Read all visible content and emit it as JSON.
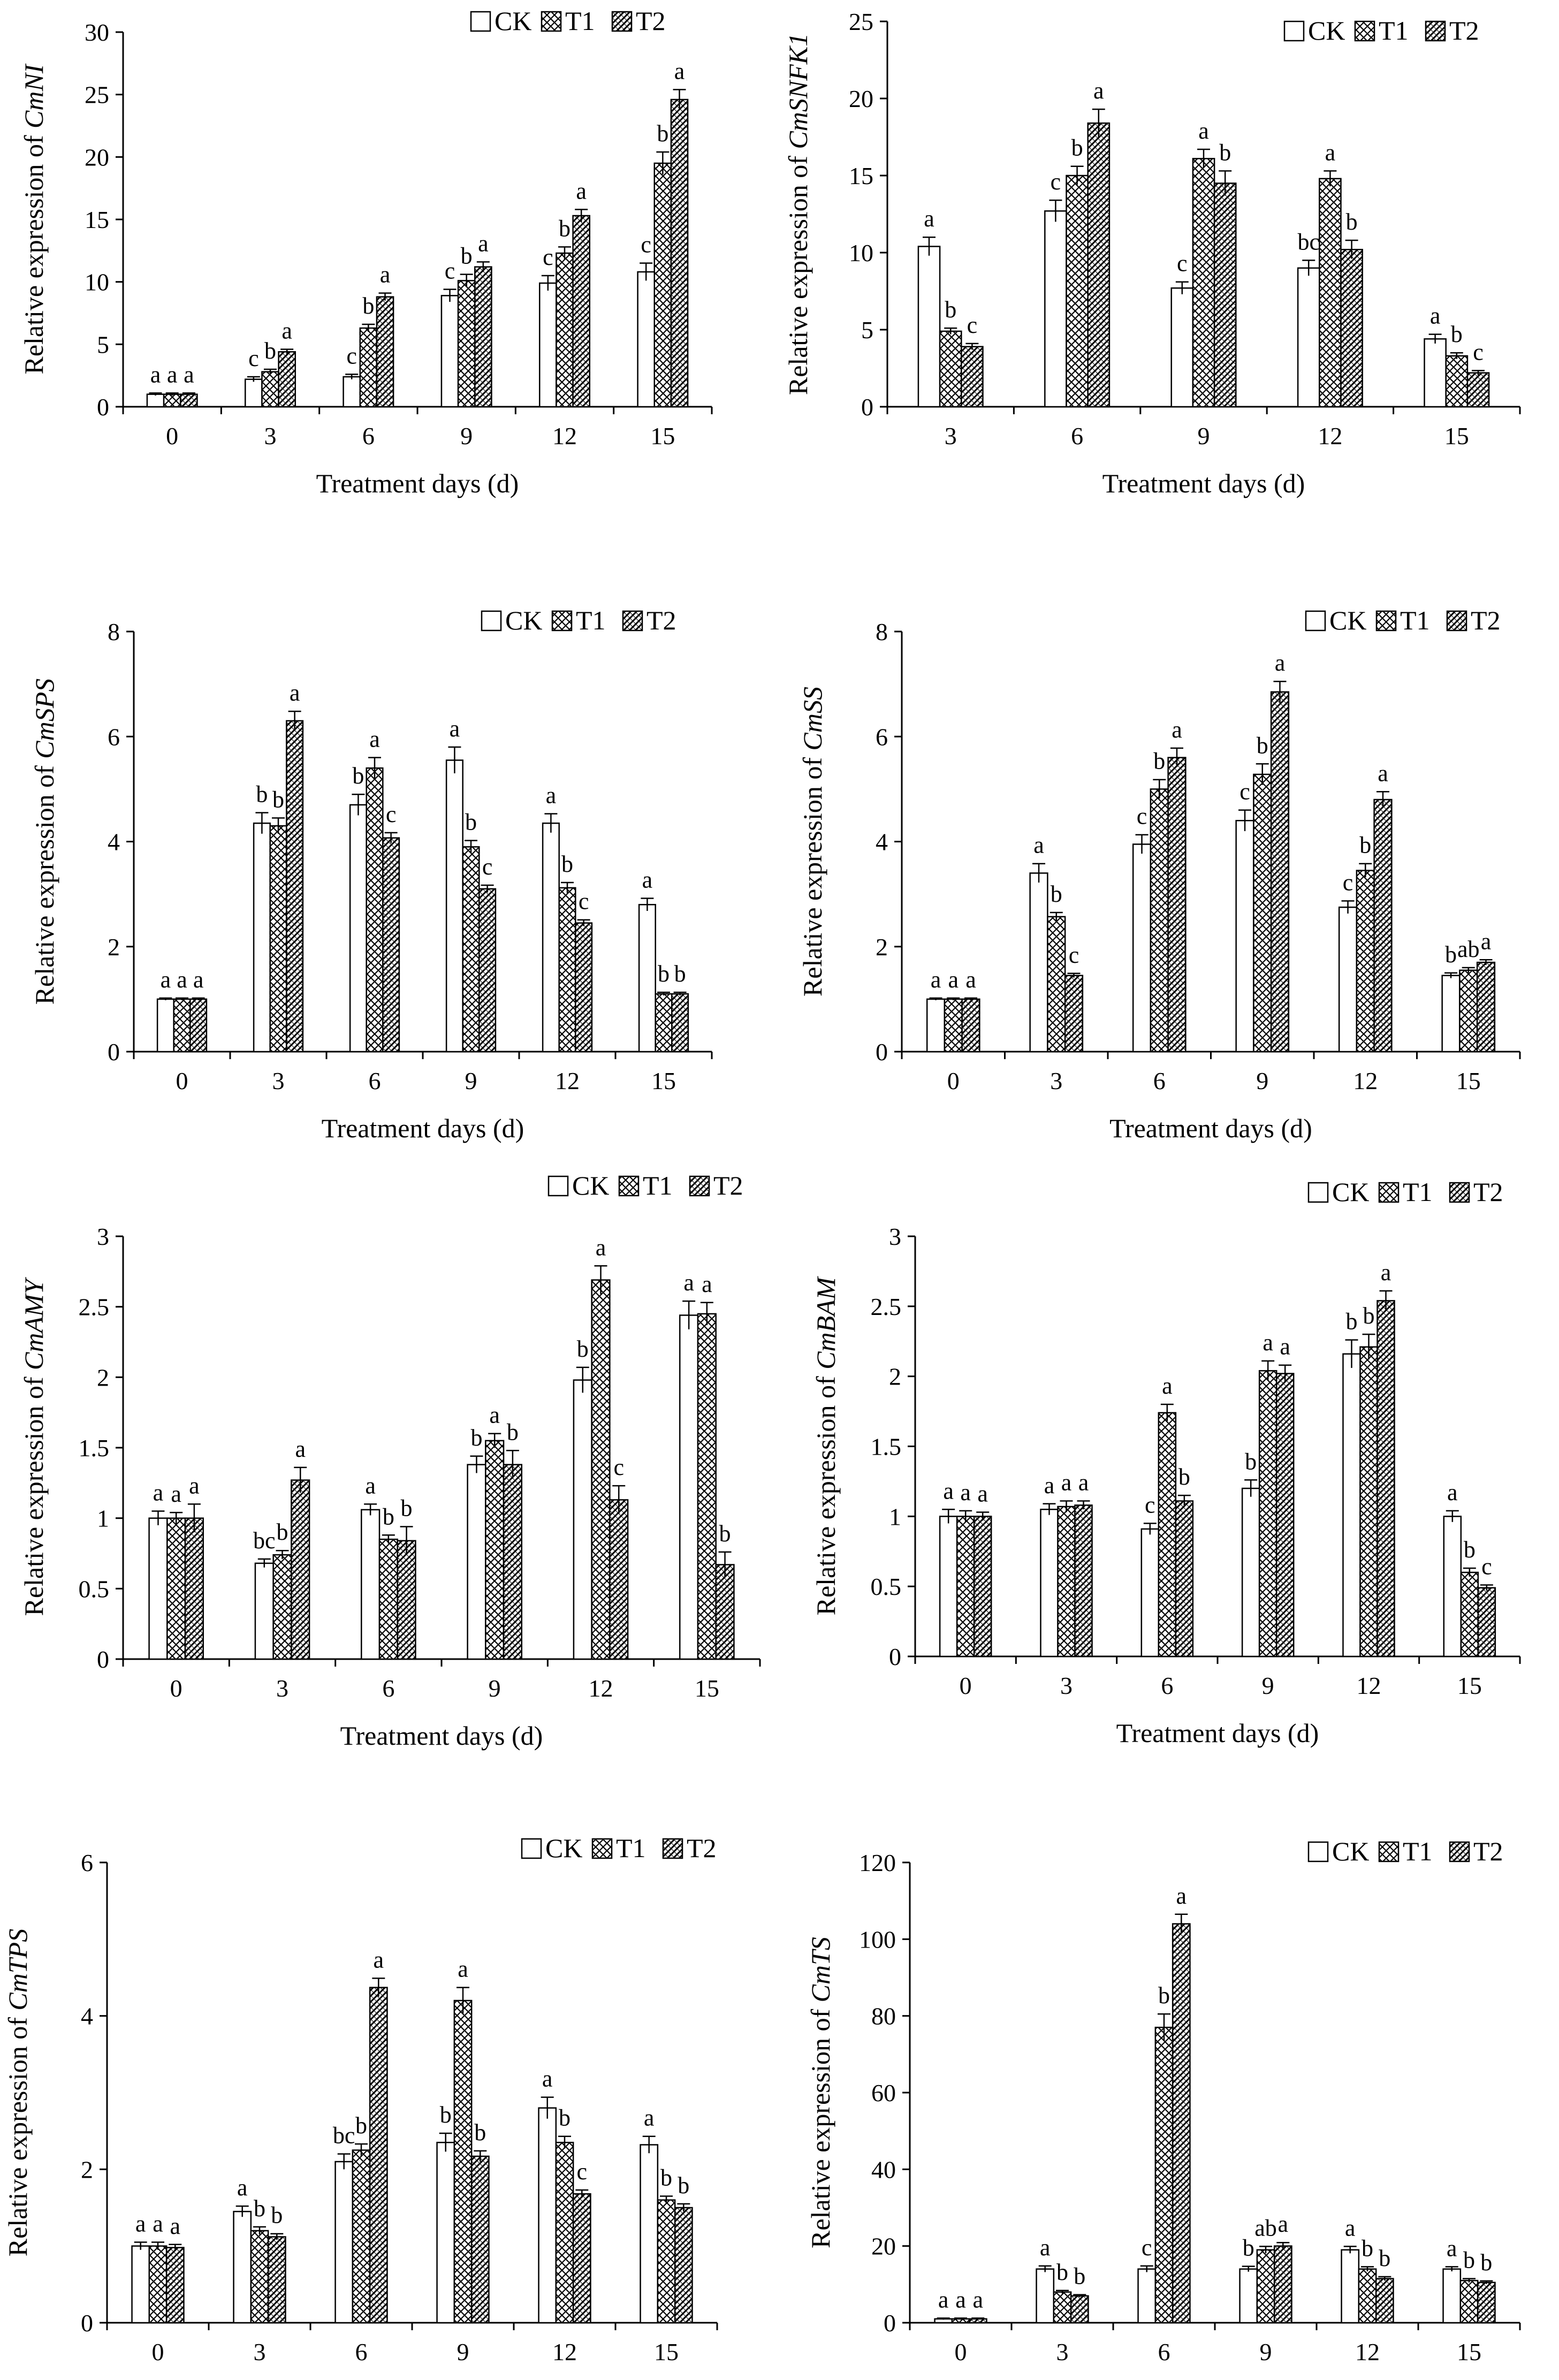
{
  "legend": [
    "CK",
    "T1",
    "T2"
  ],
  "xlabel": "Treatment days (d)",
  "ylabel_prefix": "Relative expression of",
  "chart_data": [
    {
      "type": "bar",
      "gene": "CmNI",
      "ylim": [
        0,
        30
      ],
      "yticks": [
        0,
        5,
        10,
        15,
        20,
        25,
        30
      ],
      "categories": [
        "0",
        "3",
        "6",
        "9",
        "12",
        "15"
      ],
      "series": [
        {
          "name": "CK",
          "values": [
            1,
            2.2,
            2.4,
            8.9,
            9.9,
            10.8
          ],
          "err": [
            0.1,
            0.2,
            0.2,
            0.5,
            0.6,
            0.7
          ]
        },
        {
          "name": "T1",
          "values": [
            1,
            2.8,
            6.3,
            10.1,
            12.3,
            19.5
          ],
          "err": [
            0.1,
            0.2,
            0.3,
            0.5,
            0.5,
            0.9
          ]
        },
        {
          "name": "T2",
          "values": [
            1,
            4.4,
            8.8,
            11.2,
            15.3,
            24.6
          ],
          "err": [
            0.1,
            0.2,
            0.3,
            0.4,
            0.5,
            0.8
          ]
        }
      ],
      "letters": [
        [
          "a",
          "a",
          "a"
        ],
        [
          "c",
          "b",
          "a"
        ],
        [
          "c",
          "b",
          "a"
        ],
        [
          "c",
          "b",
          "a"
        ],
        [
          "c",
          "b",
          "a"
        ],
        [
          "c",
          "b",
          "a"
        ]
      ]
    },
    {
      "type": "bar",
      "gene": "CmSNFK1",
      "ylim": [
        0,
        25
      ],
      "yticks": [
        0,
        5,
        10,
        15,
        20,
        25
      ],
      "categories": [
        "3",
        "6",
        "9",
        "12",
        "15"
      ],
      "series": [
        {
          "name": "CK",
          "values": [
            10.4,
            12.7,
            7.7,
            9.0,
            4.4
          ],
          "err": [
            0.6,
            0.7,
            0.4,
            0.5,
            0.3
          ]
        },
        {
          "name": "T1",
          "values": [
            4.9,
            15.0,
            16.1,
            14.8,
            3.3
          ],
          "err": [
            0.2,
            0.6,
            0.6,
            0.5,
            0.2
          ]
        },
        {
          "name": "T2",
          "values": [
            3.9,
            18.4,
            14.5,
            10.2,
            2.2
          ],
          "err": [
            0.2,
            0.9,
            0.8,
            0.6,
            0.15
          ]
        }
      ],
      "letters": [
        [
          "a",
          "b",
          "c"
        ],
        [
          "c",
          "b",
          "a"
        ],
        [
          "c",
          "a",
          "b"
        ],
        [
          "bc",
          "a",
          "b"
        ],
        [
          "a",
          "b",
          "c"
        ]
      ]
    },
    {
      "type": "bar",
      "gene": "CmSPS",
      "ylim": [
        0,
        8
      ],
      "yticks": [
        0,
        2,
        4,
        6,
        8
      ],
      "categories": [
        "0",
        "3",
        "6",
        "9",
        "12",
        "15"
      ],
      "series": [
        {
          "name": "CK",
          "values": [
            1,
            4.35,
            4.7,
            5.55,
            4.35,
            2.8
          ],
          "err": [
            0.02,
            0.2,
            0.2,
            0.25,
            0.18,
            0.12
          ]
        },
        {
          "name": "T1",
          "values": [
            1,
            4.3,
            5.4,
            3.9,
            3.12,
            1.1
          ],
          "err": [
            0.02,
            0.15,
            0.2,
            0.12,
            0.1,
            0.03
          ]
        },
        {
          "name": "T2",
          "values": [
            1,
            6.3,
            4.07,
            3.1,
            2.45,
            1.1
          ],
          "err": [
            0.02,
            0.18,
            0.1,
            0.07,
            0.06,
            0.03
          ]
        }
      ],
      "letters": [
        [
          "a",
          "a",
          "a"
        ],
        [
          "b",
          "b",
          "a"
        ],
        [
          "b",
          "a",
          "c"
        ],
        [
          "a",
          "b",
          "c"
        ],
        [
          "a",
          "b",
          "c"
        ],
        [
          "a",
          "b",
          "b"
        ]
      ]
    },
    {
      "type": "bar",
      "gene": "CmSS",
      "ylim": [
        0,
        8
      ],
      "yticks": [
        0,
        2,
        4,
        6,
        8
      ],
      "categories": [
        "0",
        "3",
        "6",
        "9",
        "12",
        "15"
      ],
      "series": [
        {
          "name": "CK",
          "values": [
            1,
            3.4,
            3.95,
            4.4,
            2.75,
            1.45
          ],
          "err": [
            0.02,
            0.18,
            0.18,
            0.2,
            0.12,
            0.05
          ]
        },
        {
          "name": "T1",
          "values": [
            1,
            2.57,
            5.0,
            5.28,
            3.45,
            1.55
          ],
          "err": [
            0.02,
            0.08,
            0.18,
            0.2,
            0.13,
            0.05
          ]
        },
        {
          "name": "T2",
          "values": [
            1,
            1.45,
            5.6,
            6.85,
            4.8,
            1.7
          ],
          "err": [
            0.02,
            0.04,
            0.18,
            0.2,
            0.15,
            0.05
          ]
        }
      ],
      "letters": [
        [
          "a",
          "a",
          "a"
        ],
        [
          "a",
          "b",
          "c"
        ],
        [
          "c",
          "b",
          "a"
        ],
        [
          "c",
          "b",
          "a"
        ],
        [
          "c",
          "b",
          "a"
        ],
        [
          "b",
          "ab",
          "a"
        ]
      ]
    },
    {
      "type": "bar",
      "gene": "CmAMY",
      "ylim": [
        0,
        3
      ],
      "yticks": [
        0,
        0.5,
        1,
        1.5,
        2,
        2.5,
        3
      ],
      "categories": [
        "0",
        "3",
        "6",
        "9",
        "12",
        "15"
      ],
      "series": [
        {
          "name": "CK",
          "values": [
            1.0,
            0.68,
            1.06,
            1.38,
            1.98,
            2.44
          ],
          "err": [
            0.05,
            0.03,
            0.04,
            0.06,
            0.09,
            0.1
          ]
        },
        {
          "name": "T1",
          "values": [
            1.0,
            0.74,
            0.85,
            1.55,
            2.69,
            2.45
          ],
          "err": [
            0.04,
            0.03,
            0.03,
            0.05,
            0.1,
            0.08
          ]
        },
        {
          "name": "T2",
          "values": [
            1.0,
            1.27,
            0.84,
            1.38,
            1.13,
            0.67
          ],
          "err": [
            0.1,
            0.09,
            0.1,
            0.1,
            0.1,
            0.09
          ]
        }
      ],
      "letters": [
        [
          "a",
          "a",
          "a"
        ],
        [
          "bc",
          "b",
          "a"
        ],
        [
          "a",
          "b",
          "b"
        ],
        [
          "b",
          "a",
          "b"
        ],
        [
          "b",
          "a",
          "c"
        ],
        [
          "a",
          "a",
          "b"
        ]
      ]
    },
    {
      "type": "bar",
      "gene": "CmBAM",
      "ylim": [
        0,
        3
      ],
      "yticks": [
        0,
        0.5,
        1,
        1.5,
        2,
        2.5,
        3
      ],
      "categories": [
        "0",
        "3",
        "6",
        "9",
        "12",
        "15"
      ],
      "series": [
        {
          "name": "CK",
          "values": [
            1.0,
            1.05,
            0.91,
            1.2,
            2.16,
            1.0
          ],
          "err": [
            0.05,
            0.04,
            0.04,
            0.06,
            0.1,
            0.04
          ]
        },
        {
          "name": "T1",
          "values": [
            1.0,
            1.07,
            1.74,
            2.04,
            2.21,
            0.6
          ],
          "err": [
            0.04,
            0.04,
            0.06,
            0.07,
            0.09,
            0.03
          ]
        },
        {
          "name": "T2",
          "values": [
            1.0,
            1.08,
            1.11,
            2.02,
            2.54,
            0.49
          ],
          "err": [
            0.03,
            0.03,
            0.04,
            0.06,
            0.07,
            0.02
          ]
        }
      ],
      "letters": [
        [
          "a",
          "a",
          "a"
        ],
        [
          "a",
          "a",
          "a"
        ],
        [
          "c",
          "a",
          "b"
        ],
        [
          "b",
          "a",
          "a"
        ],
        [
          "b",
          "b",
          "a"
        ],
        [
          "a",
          "b",
          "c"
        ]
      ]
    },
    {
      "type": "bar",
      "gene": "CmTPS",
      "ylim": [
        0,
        6
      ],
      "yticks": [
        0,
        2,
        4,
        6
      ],
      "categories": [
        "0",
        "3",
        "6",
        "9",
        "12",
        "15"
      ],
      "series": [
        {
          "name": "CK",
          "values": [
            1.0,
            1.45,
            2.1,
            2.35,
            2.8,
            2.32
          ],
          "err": [
            0.05,
            0.07,
            0.1,
            0.12,
            0.14,
            0.11
          ]
        },
        {
          "name": "T1",
          "values": [
            1.0,
            1.2,
            2.25,
            4.2,
            2.35,
            1.6
          ],
          "err": [
            0.05,
            0.05,
            0.08,
            0.17,
            0.08,
            0.05
          ]
        },
        {
          "name": "T2",
          "values": [
            0.98,
            1.12,
            4.37,
            2.17,
            1.68,
            1.5
          ],
          "err": [
            0.04,
            0.04,
            0.12,
            0.07,
            0.05,
            0.05
          ]
        }
      ],
      "letters": [
        [
          "a",
          "a",
          "a"
        ],
        [
          "a",
          "b",
          "b"
        ],
        [
          "bc",
          "b",
          "a"
        ],
        [
          "b",
          "a",
          "b"
        ],
        [
          "a",
          "b",
          "c"
        ],
        [
          "a",
          "b",
          "b"
        ]
      ]
    },
    {
      "type": "bar",
      "gene": "CmTS",
      "ylim": [
        0,
        120
      ],
      "yticks": [
        0,
        20,
        40,
        60,
        80,
        100,
        120
      ],
      "categories": [
        "0",
        "3",
        "6",
        "9",
        "12",
        "15"
      ],
      "series": [
        {
          "name": "CK",
          "values": [
            1,
            14,
            14,
            14,
            19,
            14
          ],
          "err": [
            0.2,
            0.8,
            0.8,
            0.7,
            0.9,
            0.6
          ]
        },
        {
          "name": "T1",
          "values": [
            1,
            8,
            77,
            19,
            14,
            11
          ],
          "err": [
            0.2,
            0.4,
            3.5,
            0.9,
            0.6,
            0.5
          ]
        },
        {
          "name": "T2",
          "values": [
            1,
            7,
            104,
            20,
            11.5,
            10.5
          ],
          "err": [
            0.2,
            0.3,
            2.5,
            0.9,
            0.5,
            0.4
          ]
        }
      ],
      "letters": [
        [
          "a",
          "a",
          "a"
        ],
        [
          "a",
          "b",
          "b"
        ],
        [
          "c",
          "b",
          "a"
        ],
        [
          "b",
          "ab",
          "a"
        ],
        [
          "a",
          "b",
          "b"
        ],
        [
          "a",
          "b",
          "b"
        ]
      ]
    }
  ]
}
